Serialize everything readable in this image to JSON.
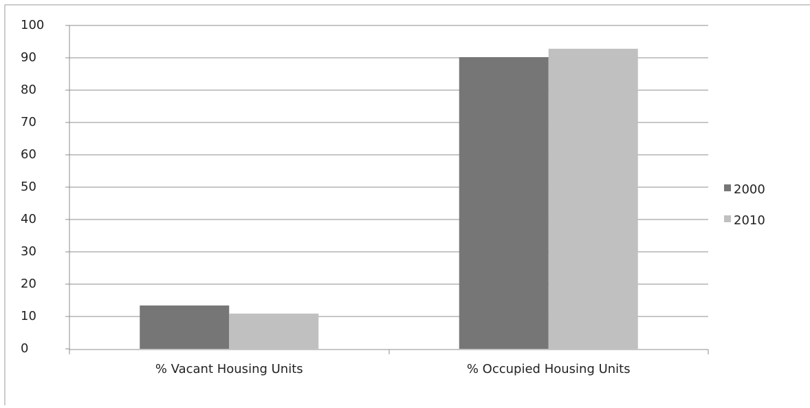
{
  "chart_data": {
    "type": "bar",
    "categories": [
      "% Vacant Housing Units",
      "% Occupied Housing Units"
    ],
    "series": [
      {
        "name": "2000",
        "color": "#767676",
        "values": [
          13.4,
          90.2
        ]
      },
      {
        "name": "2010",
        "color": "#c0c0c0",
        "values": [
          10.9,
          92.8
        ]
      }
    ],
    "ylim": [
      0,
      100
    ],
    "yticks": [
      0,
      10,
      20,
      30,
      40,
      50,
      60,
      70,
      80,
      90,
      100
    ],
    "grid": true,
    "legend": "right"
  }
}
